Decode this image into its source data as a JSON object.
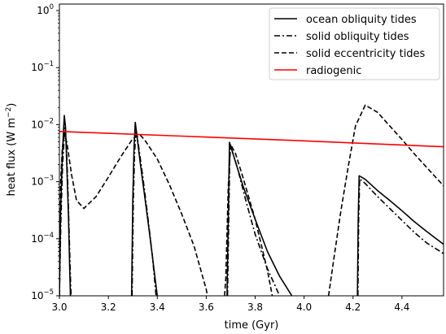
{
  "chart_data": {
    "type": "line",
    "xlabel": "time (Gyr)",
    "ylabel_main": "heat flux (W m",
    "ylabel_sup": "−2",
    "ylabel_close": ")",
    "xlim": [
      3.0,
      4.57
    ],
    "ylim": [
      1e-05,
      1.3
    ],
    "yscale": "log",
    "legend_position": "top-right",
    "xticks": [
      3.0,
      3.2,
      3.4,
      3.6,
      3.8,
      4.0,
      4.2,
      4.4
    ],
    "xtick_labels": [
      "3.0",
      "3.2",
      "3.4",
      "3.6",
      "3.8",
      "4.0",
      "4.2",
      "4.4"
    ],
    "yticks": [
      {
        "exp": -5,
        "base": "10",
        "sup": "−5"
      },
      {
        "exp": -4,
        "base": "10",
        "sup": "−4"
      },
      {
        "exp": -3,
        "base": "10",
        "sup": "−3"
      },
      {
        "exp": -2,
        "base": "10",
        "sup": "−2"
      },
      {
        "exp": -1,
        "base": "10",
        "sup": "−1"
      },
      {
        "exp": 0,
        "base": "10",
        "sup": "0"
      }
    ],
    "series": [
      {
        "name": "ocean obliquity tides",
        "color": "#000000",
        "dash": "solid",
        "segments": [
          [
            [
              3.0,
              1e-05
            ],
            [
              3.005,
              0.0003
            ],
            [
              3.012,
              0.003
            ],
            [
              3.02,
              0.0145
            ],
            [
              3.025,
              0.009
            ],
            [
              3.03,
              0.002
            ],
            [
              3.037,
              0.00025
            ],
            [
              3.042,
              3e-05
            ],
            [
              3.045,
              1e-05
            ]
          ],
          [
            [
              3.295,
              1e-05
            ],
            [
              3.3,
              0.0005
            ],
            [
              3.305,
              0.004
            ],
            [
              3.31,
              0.011
            ],
            [
              3.32,
              0.005
            ],
            [
              3.33,
              0.0022
            ],
            [
              3.35,
              0.0005
            ],
            [
              3.37,
              0.00011
            ],
            [
              3.39,
              2.2e-05
            ],
            [
              3.4,
              1e-05
            ]
          ],
          [
            [
              3.685,
              1e-05
            ],
            [
              3.69,
              0.0002
            ],
            [
              3.695,
              0.0049
            ],
            [
              3.7,
              0.0042
            ],
            [
              3.72,
              0.0022
            ],
            [
              3.75,
              0.00085
            ],
            [
              3.8,
              0.00022
            ],
            [
              3.85,
              6e-05
            ],
            [
              3.9,
              2.2e-05
            ],
            [
              3.95,
              1e-05
            ]
          ],
          [
            [
              4.218,
              1e-05
            ],
            [
              4.221,
              0.0002
            ],
            [
              4.225,
              0.00127
            ],
            [
              4.25,
              0.0011
            ],
            [
              4.3,
              0.0007
            ],
            [
              4.35,
              0.00047
            ],
            [
              4.4,
              0.00031
            ],
            [
              4.45,
              0.0002
            ],
            [
              4.5,
              0.000135
            ],
            [
              4.57,
              8e-05
            ]
          ]
        ]
      },
      {
        "name": "solid obliquity tides",
        "color": "#000000",
        "dash": "dashdot",
        "segments": [
          [
            [
              3.0,
              1e-05
            ],
            [
              3.006,
              0.0002
            ],
            [
              3.013,
              0.002
            ],
            [
              3.022,
              0.0088
            ],
            [
              3.028,
              0.005
            ],
            [
              3.034,
              0.001
            ],
            [
              3.04,
              0.00012
            ],
            [
              3.046,
              1.5e-05
            ],
            [
              3.048,
              1e-05
            ]
          ],
          [
            [
              3.297,
              1e-05
            ],
            [
              3.302,
              0.0004
            ],
            [
              3.307,
              0.003
            ],
            [
              3.313,
              0.0085
            ],
            [
              3.325,
              0.0038
            ],
            [
              3.34,
              0.0013
            ],
            [
              3.36,
              0.00027
            ],
            [
              3.38,
              5e-05
            ],
            [
              3.395,
              1e-05
            ]
          ],
          [
            [
              3.687,
              1e-05
            ],
            [
              3.692,
              0.0002
            ],
            [
              3.697,
              0.0047
            ],
            [
              3.705,
              0.0036
            ],
            [
              3.73,
              0.0016
            ],
            [
              3.76,
              0.0005
            ],
            [
              3.8,
              0.00012
            ],
            [
              3.85,
              3e-05
            ],
            [
              3.9,
              1e-05
            ]
          ],
          [
            [
              4.22,
              1e-05
            ],
            [
              4.223,
              0.0002
            ],
            [
              4.227,
              0.00112
            ],
            [
              4.25,
              0.00093
            ],
            [
              4.3,
              0.00055
            ],
            [
              4.35,
              0.00034
            ],
            [
              4.4,
              0.00021
            ],
            [
              4.45,
              0.00013
            ],
            [
              4.5,
              8.5e-05
            ],
            [
              4.57,
              5.5e-05
            ]
          ]
        ]
      },
      {
        "name": "solid eccentricity tides",
        "color": "#000000",
        "dash": "dashed",
        "segments": [
          [
            [
              3.0,
              2e-05
            ],
            [
              3.005,
              0.0009
            ],
            [
              3.012,
              0.004
            ],
            [
              3.02,
              0.0065
            ],
            [
              3.03,
              0.005
            ],
            [
              3.05,
              0.0013
            ],
            [
              3.07,
              0.00047
            ],
            [
              3.1,
              0.00034
            ],
            [
              3.15,
              0.00055
            ],
            [
              3.2,
              0.0012
            ],
            [
              3.25,
              0.0027
            ],
            [
              3.3,
              0.0057
            ],
            [
              3.33,
              0.0066
            ],
            [
              3.35,
              0.0053
            ],
            [
              3.4,
              0.0025
            ],
            [
              3.45,
              0.00088
            ],
            [
              3.5,
              0.00027
            ],
            [
              3.55,
              7.5e-05
            ],
            [
              3.6,
              1.3e-05
            ],
            [
              3.605,
              1e-05
            ]
          ],
          [
            [
              3.675,
              1e-05
            ],
            [
              3.68,
              2e-05
            ],
            [
              3.69,
              0.0008
            ],
            [
              3.7,
              0.0045
            ],
            [
              3.72,
              0.0031
            ],
            [
              3.75,
              0.0012
            ],
            [
              3.8,
              0.00022
            ],
            [
              3.85,
              2.8e-05
            ],
            [
              3.87,
              1e-05
            ]
          ],
          [
            [
              4.1,
              1e-05
            ],
            [
              4.12,
              4e-05
            ],
            [
              4.15,
              0.0003
            ],
            [
              4.18,
              0.0018
            ],
            [
              4.21,
              0.0095
            ],
            [
              4.25,
              0.022
            ],
            [
              4.3,
              0.0165
            ],
            [
              4.35,
              0.0095
            ],
            [
              4.4,
              0.0055
            ],
            [
              4.45,
              0.0031
            ],
            [
              4.5,
              0.0018
            ],
            [
              4.55,
              0.00105
            ],
            [
              4.57,
              0.00085
            ]
          ]
        ]
      },
      {
        "name": "radiogenic",
        "color": "#ff0000",
        "dash": "solid",
        "segments": [
          [
            [
              3.0,
              0.0076
            ],
            [
              3.5,
              0.0063
            ],
            [
              4.0,
              0.0052
            ],
            [
              4.57,
              0.0041
            ]
          ]
        ]
      }
    ]
  }
}
